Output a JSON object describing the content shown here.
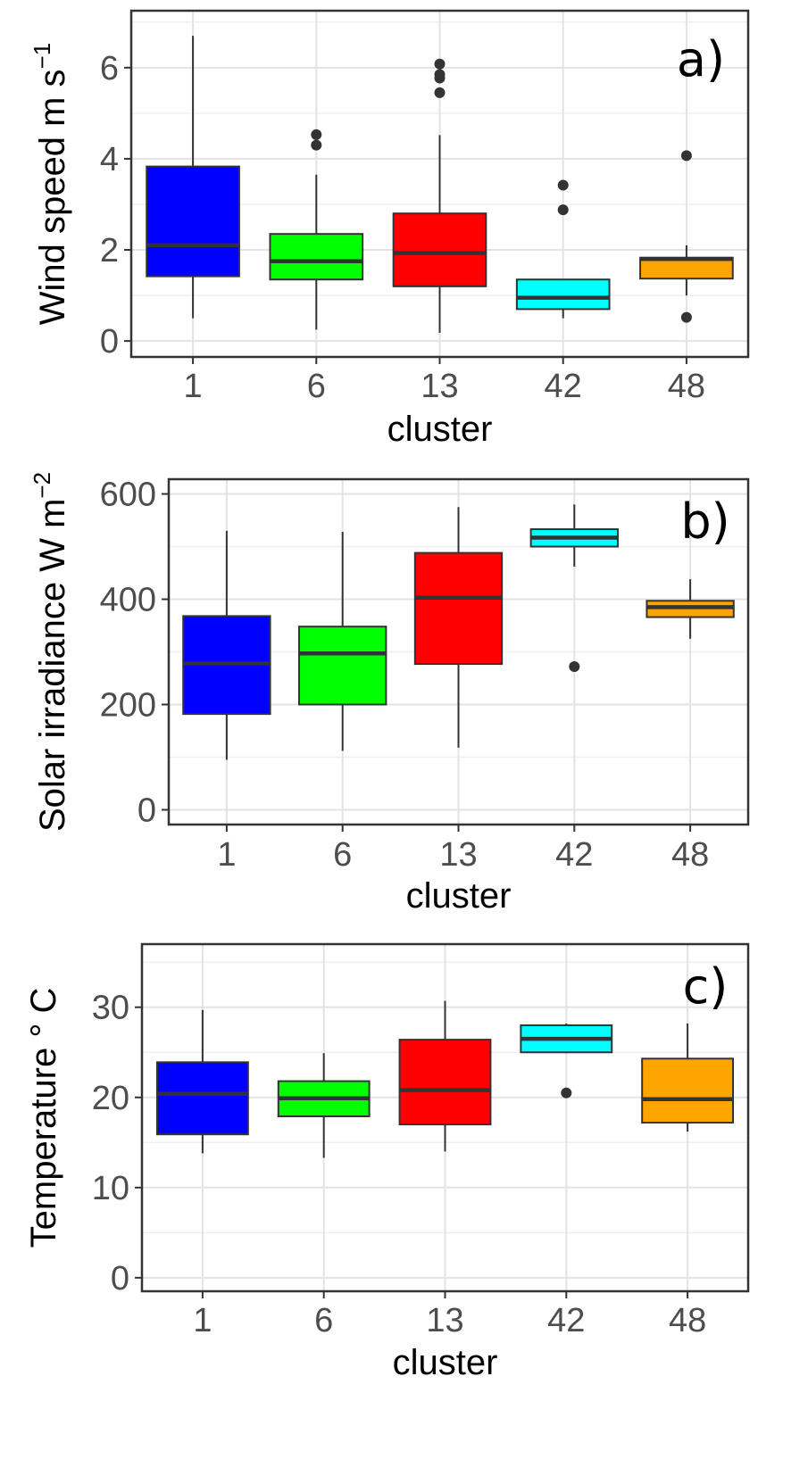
{
  "chart_data": [
    {
      "type": "boxplot",
      "panel_label": "a)",
      "xlabel": "cluster",
      "ylabel": "Wind speed m  s",
      "ylabel_sup": "−1",
      "categories": [
        "1",
        "6",
        "13",
        "42",
        "48"
      ],
      "ylim": [
        -0.35,
        7.25
      ],
      "y_ticks": [
        0,
        2,
        4,
        6
      ],
      "grid": true,
      "boxes": [
        {
          "category": "1",
          "color": "#0000ff",
          "whisker_low": 0.5,
          "q1": 1.42,
          "median": 2.1,
          "q3": 3.83,
          "whisker_high": 6.7,
          "outliers": []
        },
        {
          "category": "6",
          "color": "#00ff00",
          "whisker_low": 0.25,
          "q1": 1.35,
          "median": 1.75,
          "q3": 2.35,
          "whisker_high": 3.65,
          "outliers": [
            4.3,
            4.53
          ]
        },
        {
          "category": "13",
          "color": "#ff0000",
          "whisker_low": 0.18,
          "q1": 1.2,
          "median": 1.93,
          "q3": 2.8,
          "whisker_high": 4.52,
          "outliers": [
            5.45,
            5.77,
            5.85,
            6.08
          ]
        },
        {
          "category": "42",
          "color": "#00ffff",
          "whisker_low": 0.5,
          "q1": 0.7,
          "median": 0.95,
          "q3": 1.35,
          "whisker_high": 1.35,
          "outliers": [
            2.88,
            3.42
          ]
        },
        {
          "category": "48",
          "color": "#ffa500",
          "whisker_low": 1.0,
          "q1": 1.37,
          "median": 1.8,
          "q3": 1.83,
          "whisker_high": 2.1,
          "outliers": [
            0.52,
            4.07
          ]
        }
      ]
    },
    {
      "type": "boxplot",
      "panel_label": "b)",
      "xlabel": "cluster",
      "ylabel": "Solar irradiance W  m",
      "ylabel_sup": "−2",
      "categories": [
        "1",
        "6",
        "13",
        "42",
        "48"
      ],
      "ylim": [
        -28,
        628
      ],
      "y_ticks": [
        0,
        200,
        400,
        600
      ],
      "grid": true,
      "boxes": [
        {
          "category": "1",
          "color": "#0000ff",
          "whisker_low": 95,
          "q1": 182,
          "median": 278,
          "q3": 368,
          "whisker_high": 530,
          "outliers": []
        },
        {
          "category": "6",
          "color": "#00ff00",
          "whisker_low": 112,
          "q1": 200,
          "median": 297,
          "q3": 348,
          "whisker_high": 528,
          "outliers": []
        },
        {
          "category": "13",
          "color": "#ff0000",
          "whisker_low": 118,
          "q1": 277,
          "median": 403,
          "q3": 488,
          "whisker_high": 575,
          "outliers": []
        },
        {
          "category": "42",
          "color": "#00ffff",
          "whisker_low": 462,
          "q1": 500,
          "median": 517,
          "q3": 533,
          "whisker_high": 580,
          "outliers": [
            272
          ]
        },
        {
          "category": "48",
          "color": "#ffa500",
          "whisker_low": 325,
          "q1": 366,
          "median": 385,
          "q3": 397,
          "whisker_high": 438,
          "outliers": []
        }
      ]
    },
    {
      "type": "boxplot",
      "panel_label": "c)",
      "xlabel": "cluster",
      "ylabel": "Temperature ° C",
      "categories": [
        "1",
        "6",
        "13",
        "42",
        "48"
      ],
      "ylim": [
        -1.5,
        37
      ],
      "y_ticks": [
        0,
        10,
        20,
        30
      ],
      "grid": true,
      "boxes": [
        {
          "category": "1",
          "color": "#0000ff",
          "whisker_low": 13.8,
          "q1": 15.9,
          "median": 20.4,
          "q3": 23.9,
          "whisker_high": 29.7,
          "outliers": []
        },
        {
          "category": "6",
          "color": "#00ff00",
          "whisker_low": 13.3,
          "q1": 17.9,
          "median": 19.9,
          "q3": 21.8,
          "whisker_high": 24.9,
          "outliers": []
        },
        {
          "category": "13",
          "color": "#ff0000",
          "whisker_low": 14.0,
          "q1": 17.0,
          "median": 20.8,
          "q3": 26.4,
          "whisker_high": 30.7,
          "outliers": []
        },
        {
          "category": "42",
          "color": "#00ffff",
          "whisker_low": 24.9,
          "q1": 25.0,
          "median": 26.5,
          "q3": 28.0,
          "whisker_high": 28.2,
          "outliers": [
            20.5
          ]
        },
        {
          "category": "48",
          "color": "#ffa500",
          "whisker_low": 16.2,
          "q1": 17.2,
          "median": 19.8,
          "q3": 24.3,
          "whisker_high": 28.2,
          "outliers": []
        }
      ]
    }
  ]
}
